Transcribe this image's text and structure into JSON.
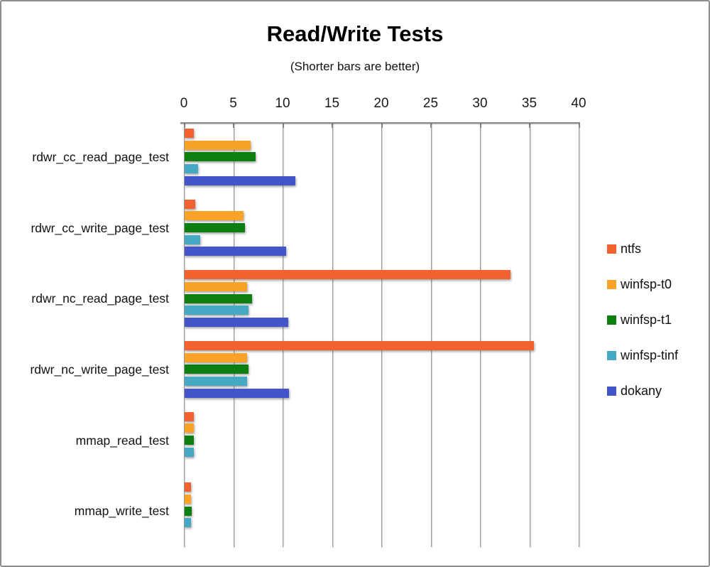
{
  "chart_data": {
    "type": "bar",
    "orientation": "horizontal",
    "title": "Read/Write Tests",
    "subtitle": "(Shorter bars are better)",
    "value_axis": {
      "position": "top",
      "min": 0,
      "max": 40,
      "tick_interval": 5,
      "ticks": [
        0,
        5,
        10,
        15,
        20,
        25,
        30,
        35,
        40
      ]
    },
    "grid": true,
    "legend_position": "right",
    "categories": [
      "rdwr_cc_read_page_test",
      "rdwr_cc_write_page_test",
      "rdwr_nc_read_page_test",
      "rdwr_nc_write_page_test",
      "mmap_read_test",
      "mmap_write_test"
    ],
    "series": [
      {
        "name": "ntfs",
        "color": "#F1622F",
        "values": [
          0.9,
          1.1,
          33.0,
          35.4,
          0.95,
          0.65
        ]
      },
      {
        "name": "winfsp-t0",
        "color": "#F9A326",
        "values": [
          6.7,
          6.0,
          6.3,
          6.3,
          0.95,
          0.65
        ]
      },
      {
        "name": "winfsp-t1",
        "color": "#0D7F10",
        "values": [
          7.2,
          6.1,
          6.8,
          6.5,
          0.9,
          0.7
        ]
      },
      {
        "name": "winfsp-tinf",
        "color": "#45A9C4",
        "values": [
          1.4,
          1.6,
          6.5,
          6.3,
          0.9,
          0.65
        ]
      },
      {
        "name": "dokany",
        "color": "#4355C8",
        "values": [
          11.2,
          10.3,
          10.5,
          10.6,
          null,
          null
        ]
      }
    ]
  }
}
